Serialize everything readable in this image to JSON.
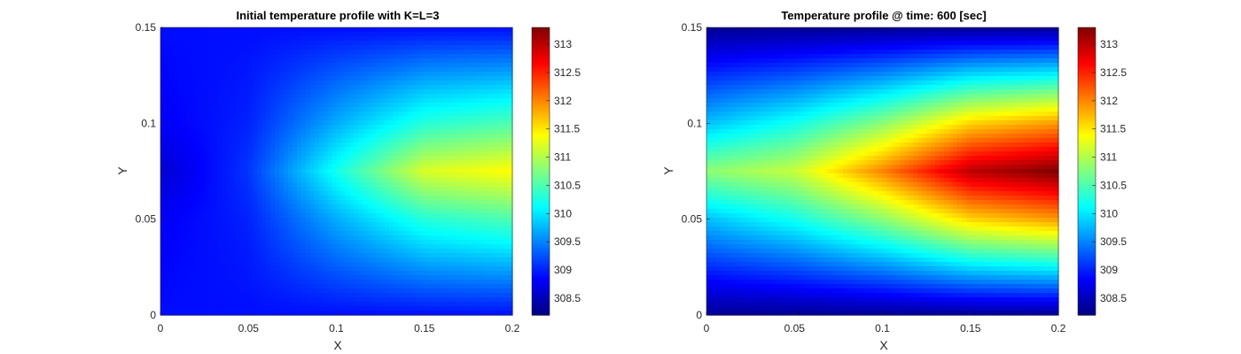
{
  "figure": {
    "background": "#ffffff"
  },
  "chart_data": [
    {
      "type": "heatmap",
      "title": "Initial temperature profile with K=L=3",
      "xlabel": "X",
      "ylabel": "Y",
      "xlim": [
        0,
        0.2
      ],
      "ylim": [
        0,
        0.15
      ],
      "xticks": [
        "0",
        "0.05",
        "0.1",
        "0.15",
        "0.2"
      ],
      "yticks": [
        "0",
        "0.05",
        "0.1",
        "0.15"
      ],
      "colormap": "jet",
      "colorbar": {
        "range": [
          308.2,
          313.3
        ],
        "ticks": [
          "308.5",
          "309",
          "309.5",
          "310",
          "310.5",
          "311",
          "311.5",
          "312",
          "312.5",
          "313"
        ]
      },
      "field_samples": {
        "x": [
          0,
          0.05,
          0.1,
          0.15,
          0.2
        ],
        "y": [
          0,
          0.05,
          0.075,
          0.1,
          0.15
        ],
        "values": [
          [
            308.9,
            308.9,
            308.9,
            308.9,
            308.9
          ],
          [
            308.8,
            309.0,
            309.7,
            310.3,
            310.5
          ],
          [
            308.6,
            309.1,
            310.2,
            311.2,
            311.4
          ],
          [
            308.8,
            309.0,
            309.7,
            310.3,
            310.5
          ],
          [
            308.9,
            308.9,
            308.9,
            308.9,
            308.9
          ]
        ]
      }
    },
    {
      "type": "heatmap",
      "title": "Temperature profile @ time: 600 [sec]",
      "xlabel": "X",
      "ylabel": "Y",
      "xlim": [
        0,
        0.2
      ],
      "ylim": [
        0,
        0.15
      ],
      "xticks": [
        "0",
        "0.05",
        "0.1",
        "0.15",
        "0.2"
      ],
      "yticks": [
        "0",
        "0.05",
        "0.1",
        "0.15"
      ],
      "colormap": "jet",
      "colorbar": {
        "range": [
          308.2,
          313.3
        ],
        "ticks": [
          "308.5",
          "309",
          "309.5",
          "310",
          "310.5",
          "311",
          "311.5",
          "312",
          "312.5",
          "313"
        ]
      },
      "field_samples": {
        "x": [
          0,
          0.05,
          0.1,
          0.15,
          0.2
        ],
        "y": [
          0,
          0.05,
          0.075,
          0.1,
          0.15
        ],
        "values": [
          [
            308.3,
            308.3,
            308.3,
            308.3,
            308.3
          ],
          [
            309.8,
            310.2,
            310.8,
            311.6,
            311.9
          ],
          [
            310.8,
            311.1,
            312.0,
            313.0,
            313.3
          ],
          [
            309.8,
            310.2,
            310.8,
            311.6,
            311.9
          ],
          [
            308.3,
            308.3,
            308.3,
            308.3,
            308.3
          ]
        ]
      }
    }
  ]
}
